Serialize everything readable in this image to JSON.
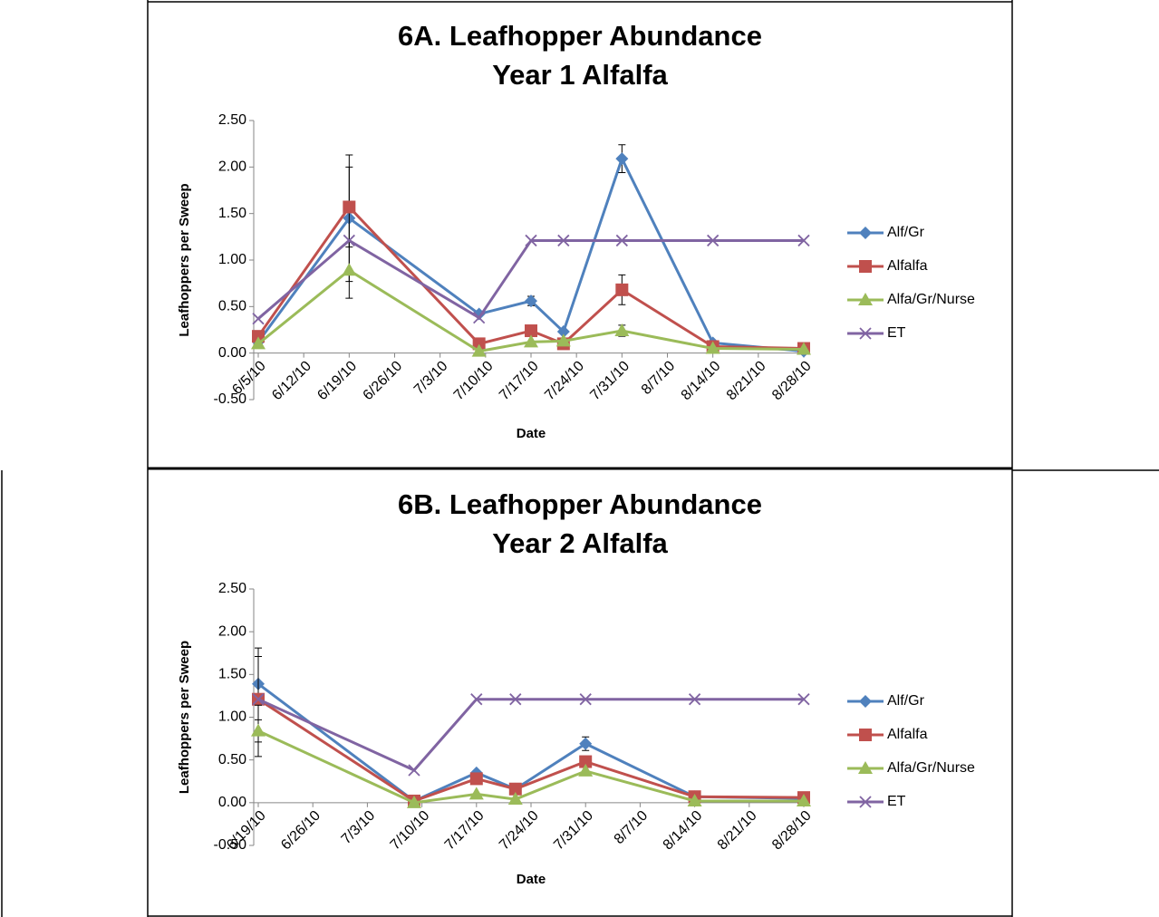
{
  "chart_data": [
    {
      "type": "line",
      "title": [
        "6A. Leafhopper Abundance",
        "Year 1 Alfalfa"
      ],
      "x_label": "Date",
      "y_label": "Leafhoppers per Sweep",
      "x": [
        "6/5/10",
        "6/19/10",
        "7/9/10",
        "7/17/10",
        "7/22/10",
        "7/31/10",
        "8/14/10",
        "8/28/10"
      ],
      "xlim": [
        "6/5/10",
        "8/28/10"
      ],
      "xticks": [
        "6/5/10",
        "6/12/10",
        "6/19/10",
        "6/26/10",
        "7/3/10",
        "7/10/10",
        "7/17/10",
        "7/24/10",
        "7/31/10",
        "8/7/10",
        "8/14/10",
        "8/21/10",
        "8/28/10"
      ],
      "ylim": [
        -0.5,
        2.5
      ],
      "yticks": [
        {
          "value": -0.5,
          "label": "-0.50"
        },
        {
          "value": 0,
          "label": "0.00"
        },
        {
          "value": 0.5,
          "label": "0.50"
        },
        {
          "value": 1,
          "label": "1.00"
        },
        {
          "value": 1.5,
          "label": "1.50"
        },
        {
          "value": 2,
          "label": "2.00"
        },
        {
          "value": 2.5,
          "label": "2.50"
        }
      ],
      "legend": "right",
      "series": [
        {
          "name": "Alf/Gr",
          "color": "#4f81bd",
          "marker": "diamond",
          "values": [
            0.12,
            1.45,
            0.42,
            0.56,
            0.23,
            2.09,
            0.11,
            0.02
          ],
          "errors": [
            null,
            0.68,
            null,
            0.05,
            null,
            0.15,
            null,
            null
          ]
        },
        {
          "name": "Alfalfa",
          "color": "#c0504d",
          "marker": "square",
          "values": [
            0.18,
            1.57,
            0.1,
            0.24,
            0.1,
            0.68,
            0.07,
            0.05
          ],
          "errors": [
            null,
            0.43,
            null,
            null,
            null,
            0.16,
            null,
            null
          ]
        },
        {
          "name": "Alfa/Gr/Nurse",
          "color": "#9bbb59",
          "marker": "triangle",
          "values": [
            0.1,
            0.89,
            0.02,
            0.12,
            0.13,
            0.24,
            0.05,
            0.04
          ],
          "errors": [
            null,
            0.3,
            null,
            null,
            null,
            0.06,
            null,
            null
          ]
        },
        {
          "name": "ET",
          "color": "#8064a2",
          "marker": "x",
          "values": [
            0.37,
            1.21,
            0.38,
            1.21,
            1.21,
            1.21,
            1.21,
            1.21
          ],
          "errors": [
            null,
            null,
            null,
            null,
            null,
            null,
            null,
            null
          ]
        }
      ]
    },
    {
      "type": "line",
      "title": [
        "6B. Leafhopper Abundance",
        "Year 2 Alfalfa"
      ],
      "x_label": "Date",
      "y_label": "Leafhoppers per Sweep",
      "x": [
        "6/19/10",
        "7/9/10",
        "7/17/10",
        "7/22/10",
        "7/31/10",
        "8/14/10",
        "8/28/10"
      ],
      "xlim": [
        "6/19/10",
        "8/28/10"
      ],
      "xticks": [
        "6/19/10",
        "6/26/10",
        "7/3/10",
        "7/10/10",
        "7/17/10",
        "7/24/10",
        "7/31/10",
        "8/7/10",
        "8/14/10",
        "8/21/10",
        "8/28/10"
      ],
      "ylim": [
        -0.5,
        2.5
      ],
      "yticks": [
        {
          "value": -0.5,
          "label": "-0.50"
        },
        {
          "value": 0,
          "label": "0.00"
        },
        {
          "value": 0.5,
          "label": "0.50"
        },
        {
          "value": 1,
          "label": "1.00"
        },
        {
          "value": 1.5,
          "label": "1.50"
        },
        {
          "value": 2,
          "label": "2.00"
        },
        {
          "value": 2.5,
          "label": "2.50"
        }
      ],
      "legend": "right",
      "series": [
        {
          "name": "Alf/Gr",
          "color": "#4f81bd",
          "marker": "diamond",
          "values": [
            1.39,
            0.02,
            0.35,
            0.16,
            0.69,
            0.07,
            0.05
          ],
          "errors": [
            0.42,
            null,
            null,
            null,
            0.08,
            null,
            null
          ]
        },
        {
          "name": "Alfalfa",
          "color": "#c0504d",
          "marker": "square",
          "values": [
            1.21,
            0.02,
            0.28,
            0.16,
            0.48,
            0.07,
            0.06
          ],
          "errors": [
            0.5,
            null,
            null,
            null,
            null,
            null,
            null
          ]
        },
        {
          "name": "Alfa/Gr/Nurse",
          "color": "#9bbb59",
          "marker": "triangle",
          "values": [
            0.84,
            0,
            0.1,
            0.04,
            0.37,
            0.02,
            0.02
          ],
          "errors": [
            0.3,
            null,
            null,
            null,
            null,
            null,
            null
          ]
        },
        {
          "name": "ET",
          "color": "#8064a2",
          "marker": "x",
          "values": [
            1.21,
            0.38,
            1.21,
            1.21,
            1.21,
            1.21,
            1.21
          ],
          "errors": [
            null,
            null,
            null,
            null,
            null,
            null,
            null
          ]
        }
      ]
    }
  ]
}
